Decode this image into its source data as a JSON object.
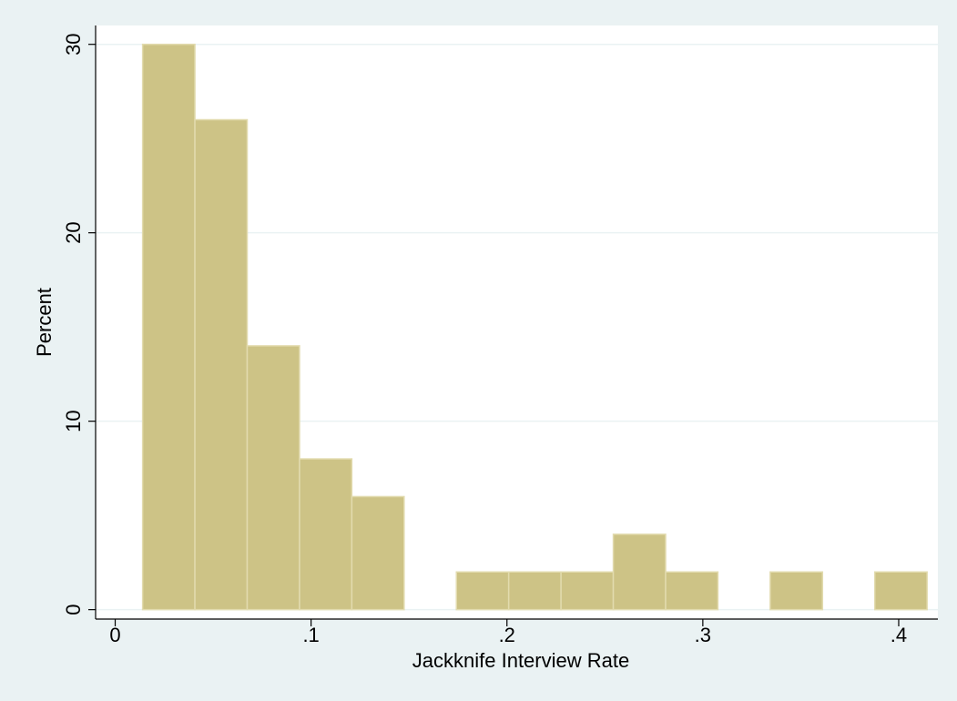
{
  "chart_data": {
    "type": "histogram",
    "x_label": "Jackknife Interview Rate",
    "y_label": "Percent",
    "bins": [
      0.014,
      0.0407,
      0.0674,
      0.0941,
      0.1208,
      0.1475,
      0.1742,
      0.2009,
      0.2276,
      0.2543,
      0.281,
      0.3077,
      0.3344,
      0.3611,
      0.3878,
      0.4145
    ],
    "values": [
      30,
      26,
      14,
      8,
      6,
      0,
      2,
      2,
      2,
      4,
      2,
      0,
      2,
      0,
      2
    ],
    "color": "#cdc386",
    "xlim": [
      -0.01,
      0.42
    ],
    "ylim": [
      -0.5,
      31
    ],
    "xticks": [
      0,
      {
        "value": 0.1,
        "label": ".1"
      },
      {
        "value": 0.2,
        "label": ".2"
      },
      {
        "value": 0.3,
        "label": ".3"
      },
      {
        "value": 0.4,
        "label": ".4"
      }
    ],
    "yticks": [
      0,
      10,
      20,
      30
    ],
    "grid": true
  }
}
